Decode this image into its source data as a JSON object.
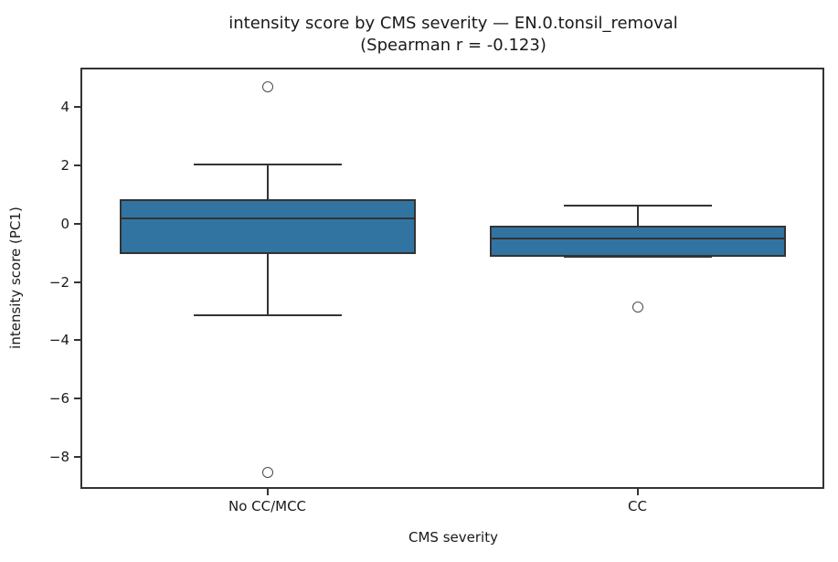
{
  "chart_data": {
    "type": "box",
    "title_line1": "intensity score by CMS severity — EN.0.tonsil_removal",
    "title_line2": "(Spearman r = -0.123)",
    "xlabel": "CMS severity",
    "ylabel": "intensity score (PC1)",
    "categories": [
      "No CC/MCC",
      "CC"
    ],
    "series": [
      {
        "category": "No CC/MCC",
        "whisker_low": -3.15,
        "q1": -1.05,
        "median": 0.2,
        "q3": 0.85,
        "whisker_high": 2.05,
        "outliers": [
          4.7,
          -8.55
        ]
      },
      {
        "category": "CC",
        "whisker_low": -1.12,
        "q1": -1.12,
        "median": -0.49,
        "q3": -0.08,
        "whisker_high": 0.63,
        "outliers": [
          -2.87
        ]
      }
    ],
    "yticks": [
      4,
      2,
      0,
      -2,
      -4,
      -6,
      -8
    ],
    "ylim": [
      -9.04,
      5.3
    ],
    "grid": false,
    "legend_position": "none",
    "box_fill_color": "#3274a1",
    "line_color": "#333333",
    "outlier_edge_color": "#4a4a4a",
    "background_color": "#ffffff"
  }
}
